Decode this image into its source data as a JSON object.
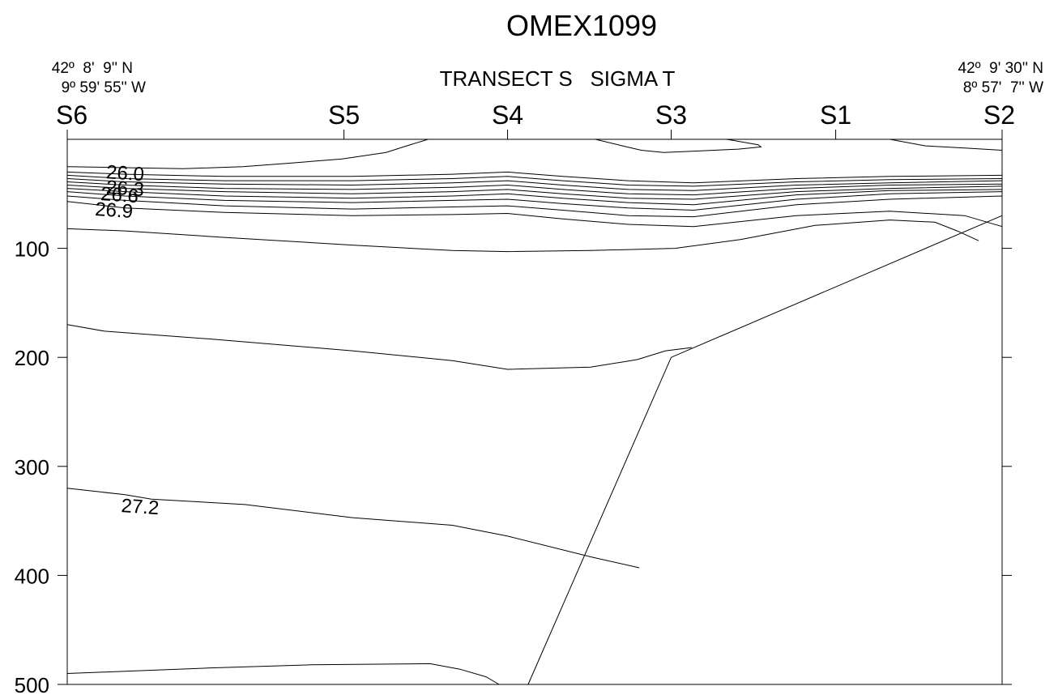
{
  "chart_data": {
    "type": "line",
    "title": "OMEX1099",
    "subtitle": "TRANSECT S   SIGMA T",
    "ylabel": "",
    "xlabel": "",
    "ylim": [
      0,
      500
    ],
    "y_reversed": true,
    "yticks": [
      100,
      200,
      300,
      400,
      500
    ],
    "x_range_km": [
      0,
      1000
    ],
    "grid": false,
    "stations": [
      {
        "name": "S6",
        "x": 0
      },
      {
        "name": "S5",
        "x": 296
      },
      {
        "name": "S4",
        "x": 471
      },
      {
        "name": "S3",
        "x": 646
      },
      {
        "name": "S1",
        "x": 822
      },
      {
        "name": "S2",
        "x": 1000
      }
    ],
    "left_position": {
      "lat": "42º  8'  9'' N",
      "lon": "9º 59' 55'' W"
    },
    "right_position": {
      "lat": "42º  9' 30'' N",
      "lon": "8º 57'  7'' W"
    },
    "contour_labels": [
      {
        "text": "26.0",
        "x": 62,
        "y": 31
      },
      {
        "text": "26.3",
        "x": 62,
        "y": 45
      },
      {
        "text": "26.6",
        "x": 56,
        "y": 51
      },
      {
        "text": "26.9",
        "x": 50,
        "y": 65
      },
      {
        "text": "27.2",
        "x": 78,
        "y": 337
      }
    ],
    "bottom": [
      [
        1000,
        70
      ],
      [
        646,
        200
      ],
      [
        493,
        500
      ]
    ],
    "contours": [
      [
        [
          386,
          0
        ],
        [
          363,
          6
        ],
        [
          341,
          12
        ],
        [
          294,
          18
        ],
        [
          236,
          22
        ],
        [
          188,
          25
        ],
        [
          124,
          27
        ],
        [
          62,
          26
        ],
        [
          0,
          25
        ]
      ],
      [
        [
          565,
          0
        ],
        [
          594,
          6
        ],
        [
          614,
          10
        ],
        [
          638,
          12
        ],
        [
          668,
          11
        ],
        [
          718,
          9
        ],
        [
          742,
          7
        ],
        [
          739,
          5
        ],
        [
          712,
          1
        ],
        [
          705,
          0
        ]
      ],
      [
        [
          1000,
          10
        ],
        [
          960,
          8
        ],
        [
          918,
          6
        ],
        [
          880,
          0
        ]
      ],
      [
        [
          0,
          30
        ],
        [
          62,
          32
        ],
        [
          168,
          34
        ],
        [
          305,
          34
        ],
        [
          412,
          32
        ],
        [
          471,
          30
        ],
        [
          530,
          34
        ],
        [
          600,
          38
        ],
        [
          670,
          40
        ],
        [
          780,
          36
        ],
        [
          880,
          34
        ],
        [
          1000,
          33
        ]
      ],
      [
        [
          0,
          33
        ],
        [
          62,
          36
        ],
        [
          168,
          38
        ],
        [
          305,
          38
        ],
        [
          412,
          36
        ],
        [
          471,
          34
        ],
        [
          530,
          38
        ],
        [
          600,
          42
        ],
        [
          670,
          43
        ],
        [
          780,
          39
        ],
        [
          880,
          37
        ],
        [
          1000,
          36
        ]
      ],
      [
        [
          0,
          36
        ],
        [
          62,
          39
        ],
        [
          168,
          41
        ],
        [
          305,
          42
        ],
        [
          412,
          40
        ],
        [
          471,
          38
        ],
        [
          530,
          42
        ],
        [
          600,
          46
        ],
        [
          670,
          47
        ],
        [
          780,
          42
        ],
        [
          880,
          40
        ],
        [
          1000,
          38
        ]
      ],
      [
        [
          0,
          39
        ],
        [
          62,
          42
        ],
        [
          168,
          45
        ],
        [
          305,
          46
        ],
        [
          412,
          44
        ],
        [
          471,
          42
        ],
        [
          530,
          46
        ],
        [
          600,
          50
        ],
        [
          670,
          51
        ],
        [
          780,
          45
        ],
        [
          880,
          42
        ],
        [
          1000,
          41
        ]
      ],
      [
        [
          0,
          42
        ],
        [
          62,
          45
        ],
        [
          168,
          48
        ],
        [
          305,
          50
        ],
        [
          412,
          48
        ],
        [
          471,
          46
        ],
        [
          530,
          50
        ],
        [
          600,
          54
        ],
        [
          670,
          55
        ],
        [
          780,
          48
        ],
        [
          880,
          45
        ],
        [
          1000,
          43
        ]
      ],
      [
        [
          0,
          45
        ],
        [
          62,
          48
        ],
        [
          168,
          52
        ],
        [
          305,
          54
        ],
        [
          412,
          52
        ],
        [
          471,
          50
        ],
        [
          530,
          54
        ],
        [
          600,
          58
        ],
        [
          670,
          60
        ],
        [
          780,
          51
        ],
        [
          880,
          47
        ],
        [
          1000,
          46
        ]
      ],
      [
        [
          0,
          48
        ],
        [
          62,
          52
        ],
        [
          168,
          56
        ],
        [
          305,
          58
        ],
        [
          412,
          56
        ],
        [
          471,
          55
        ],
        [
          530,
          59
        ],
        [
          600,
          63
        ],
        [
          670,
          65
        ],
        [
          780,
          55
        ],
        [
          880,
          50
        ],
        [
          1000,
          48
        ]
      ],
      [
        [
          0,
          52
        ],
        [
          62,
          56
        ],
        [
          168,
          61
        ],
        [
          305,
          64
        ],
        [
          412,
          62
        ],
        [
          471,
          61
        ],
        [
          530,
          65
        ],
        [
          600,
          70
        ],
        [
          670,
          71
        ],
        [
          780,
          60
        ],
        [
          880,
          55
        ],
        [
          1000,
          52
        ]
      ],
      [
        [
          0,
          57
        ],
        [
          62,
          63
        ],
        [
          168,
          67
        ],
        [
          305,
          70
        ],
        [
          412,
          69
        ],
        [
          471,
          68
        ],
        [
          530,
          73
        ],
        [
          600,
          78
        ],
        [
          670,
          80
        ],
        [
          780,
          70
        ],
        [
          880,
          66
        ],
        [
          960,
          70
        ],
        [
          1000,
          80
        ]
      ],
      [
        [
          0,
          82
        ],
        [
          62,
          84
        ],
        [
          168,
          90
        ],
        [
          305,
          97
        ],
        [
          412,
          102
        ],
        [
          471,
          103
        ],
        [
          560,
          102
        ],
        [
          650,
          100
        ],
        [
          720,
          92
        ],
        [
          800,
          79
        ],
        [
          880,
          74
        ],
        [
          928,
          76
        ],
        [
          952,
          84
        ],
        [
          975,
          93
        ]
      ],
      [
        [
          0,
          170
        ],
        [
          40,
          176
        ],
        [
          150,
          183
        ],
        [
          305,
          194
        ],
        [
          412,
          203
        ],
        [
          471,
          211
        ],
        [
          560,
          209
        ],
        [
          610,
          202
        ],
        [
          640,
          194
        ],
        [
          668,
          191
        ]
      ],
      [
        [
          0,
          320
        ],
        [
          62,
          326
        ],
        [
          90,
          330
        ],
        [
          190,
          335
        ],
        [
          305,
          347
        ],
        [
          412,
          354
        ],
        [
          471,
          364
        ],
        [
          560,
          383
        ],
        [
          612,
          393
        ]
      ],
      [
        [
          0,
          490
        ],
        [
          62,
          488
        ],
        [
          150,
          485
        ],
        [
          260,
          482
        ],
        [
          388,
          481
        ],
        [
          420,
          486
        ],
        [
          448,
          493
        ],
        [
          462,
          500
        ]
      ]
    ]
  }
}
